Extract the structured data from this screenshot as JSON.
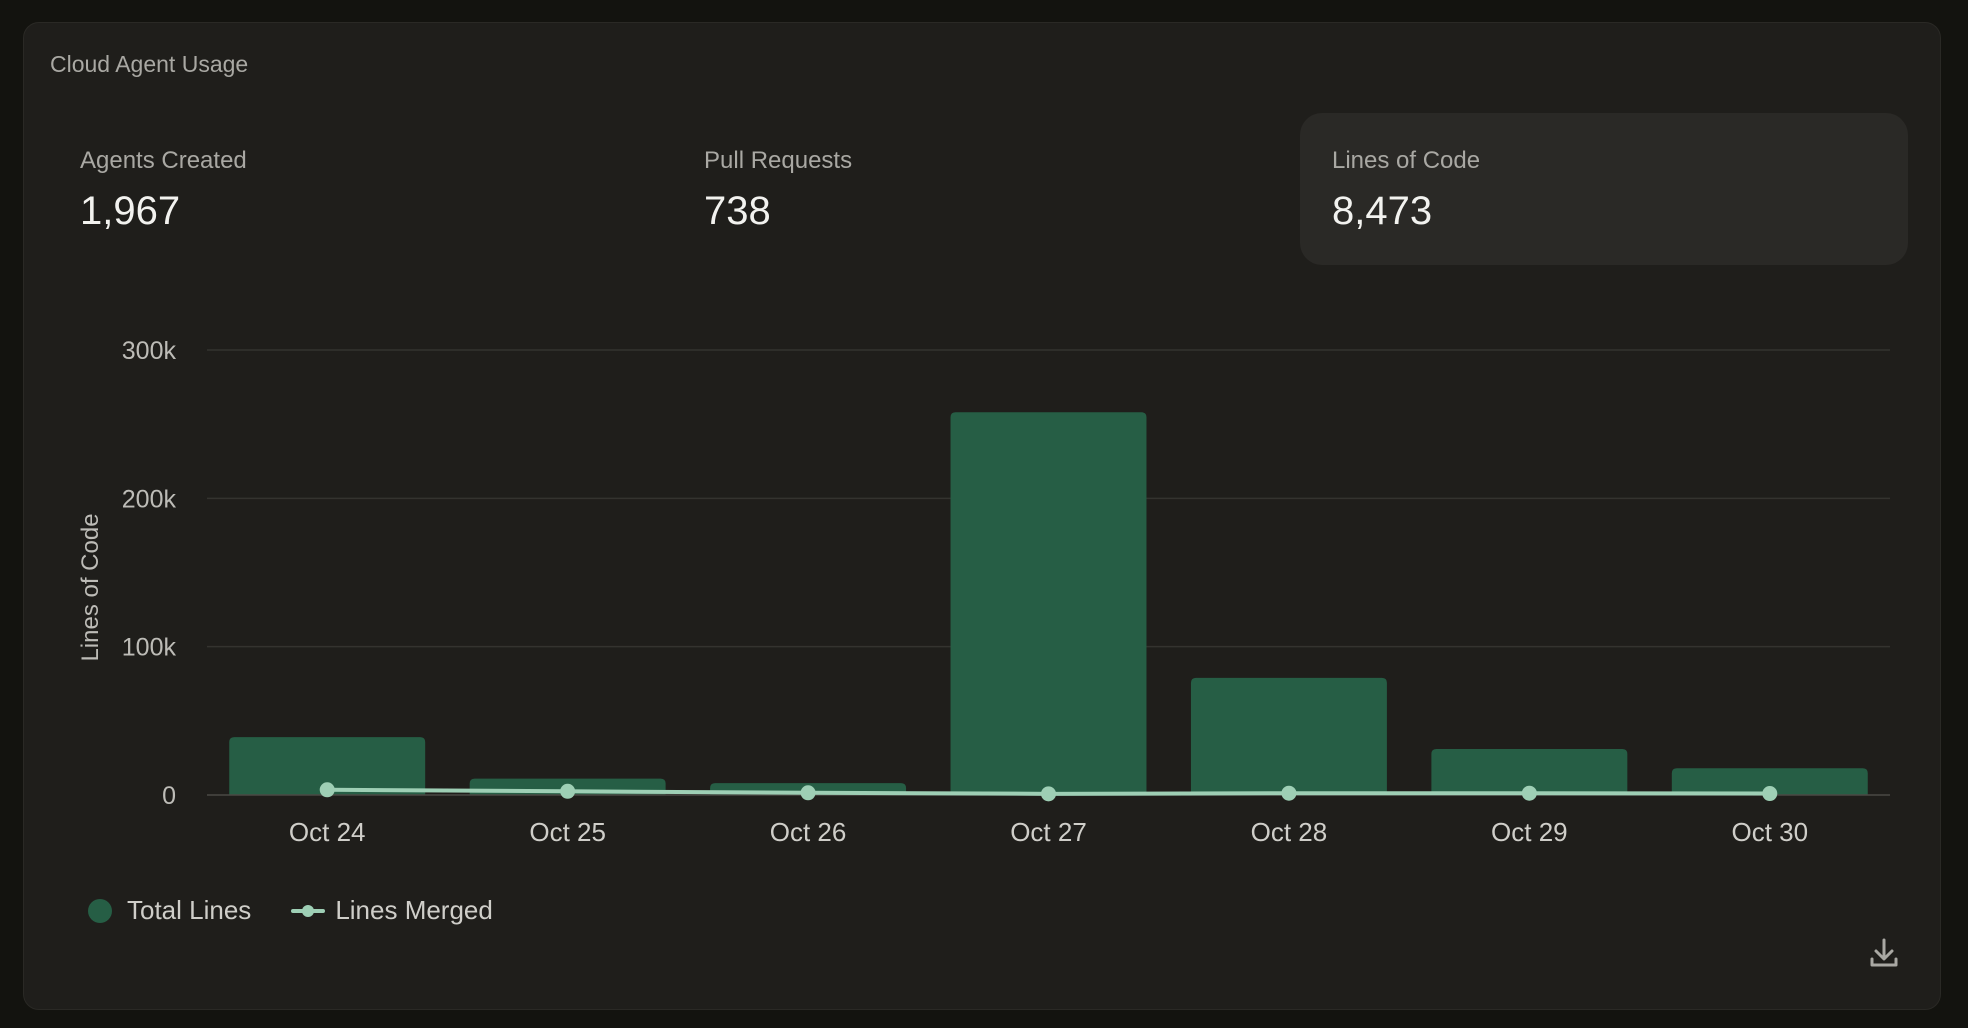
{
  "card": {
    "title": "Cloud Agent Usage"
  },
  "stats": [
    {
      "label": "Agents Created",
      "value": "1,967"
    },
    {
      "label": "Pull Requests",
      "value": "738"
    },
    {
      "label": "Lines of Code",
      "value": "8,473"
    }
  ],
  "legend": {
    "total_label": "Total Lines",
    "merged_label": "Lines Merged"
  },
  "colors": {
    "bar": "#265e45",
    "line": "#9ecfb5",
    "grid": "#34332f"
  },
  "icons": {
    "download": "download-icon"
  },
  "chart_data": {
    "type": "bar",
    "categories": [
      "Oct 24",
      "Oct 25",
      "Oct 26",
      "Oct 27",
      "Oct 28",
      "Oct 29",
      "Oct 30"
    ],
    "series": [
      {
        "name": "Total Lines",
        "type": "bar",
        "values": [
          39000,
          11000,
          8000,
          258000,
          79000,
          31000,
          18000
        ]
      },
      {
        "name": "Lines Merged",
        "type": "line",
        "values": [
          3500,
          2500,
          1500,
          800,
          1200,
          1200,
          1000
        ]
      }
    ],
    "ylabel": "Lines of Code",
    "ylim": [
      0,
      300000
    ],
    "yticks": [
      0,
      100000,
      200000,
      300000
    ],
    "ytick_labels": [
      "0",
      "100k",
      "200k",
      "300k"
    ],
    "grid": true,
    "legend_position": "bottom-left"
  }
}
